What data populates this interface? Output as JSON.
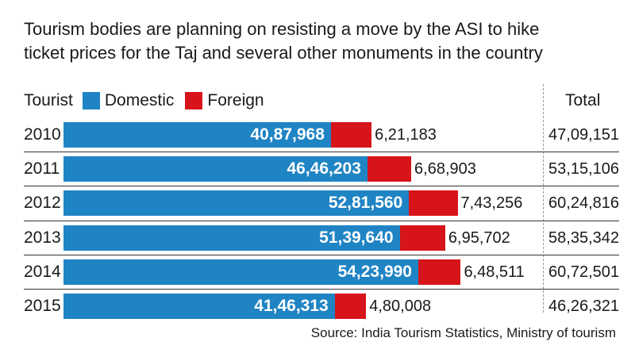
{
  "headline": {
    "line1": "Tourism bodies are planning on resisting a move by the ASI to hike",
    "line2": "ticket prices for the Taj and several other monuments in the country"
  },
  "legend": {
    "tourist_label": "Tourist",
    "domestic_label": "Domestic",
    "foreign_label": "Foreign"
  },
  "total_header": "Total",
  "source": "Source: India Tourism Statistics, Ministry of tourism",
  "colors": {
    "domestic": "#1f84c4",
    "foreign": "#d7141a"
  },
  "chart_data": {
    "type": "bar",
    "orientation": "horizontal",
    "stacked": true,
    "categories": [
      "2010",
      "2011",
      "2012",
      "2013",
      "2014",
      "2015"
    ],
    "series": [
      {
        "name": "Domestic",
        "values": [
          4087968,
          4646203,
          5281560,
          5139640,
          5423990,
          4146313
        ],
        "labels": [
          "40,87,968",
          "46,46,203",
          "52,81,560",
          "51,39,640",
          "54,23,990",
          "41,46,313"
        ]
      },
      {
        "name": "Foreign",
        "values": [
          621183,
          668903,
          743256,
          695702,
          648511,
          480008
        ],
        "labels": [
          "6,21,183",
          "6,68,903",
          "7,43,256",
          "6,95,702",
          "6,48,511",
          "4,80,008"
        ]
      }
    ],
    "totals": [
      4709151,
      5315106,
      6024816,
      5835342,
      6072501,
      4626321
    ],
    "total_labels": [
      "47,09,151",
      "53,15,106",
      "60,24,816",
      "58,35,342",
      "60,72,501",
      "46,26,321"
    ]
  }
}
